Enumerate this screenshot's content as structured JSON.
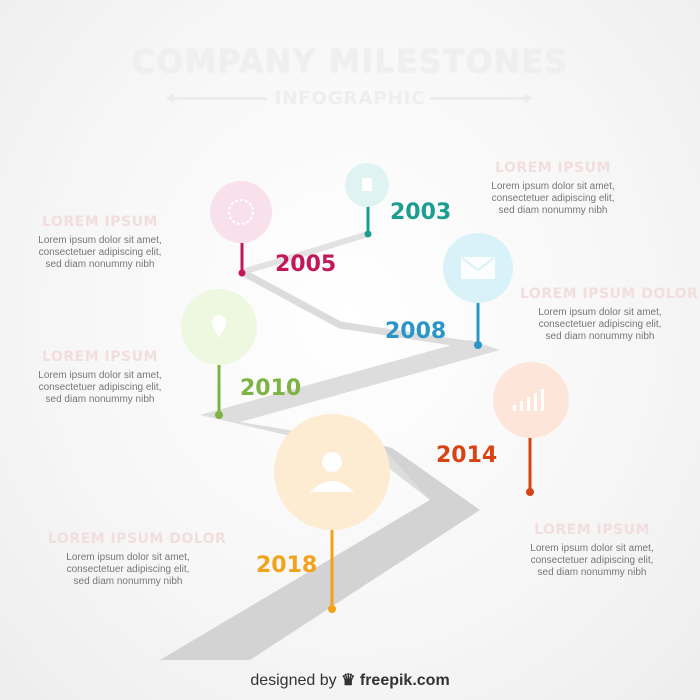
{
  "header": {
    "title": "COMPANY MILESTONES",
    "subtitle": "INFOGRAPHIC"
  },
  "milestones": [
    {
      "year": "2003",
      "color": "#1a9e8f",
      "icon": "document-icon"
    },
    {
      "year": "2005",
      "color": "#c2185b",
      "icon": "globe-icon"
    },
    {
      "year": "2008",
      "color": "#2a95c9",
      "icon": "envelope-icon"
    },
    {
      "year": "2010",
      "color": "#7cb342",
      "icon": "location-pin-icon"
    },
    {
      "year": "2014",
      "color": "#d84315",
      "icon": "bar-chart-icon"
    },
    {
      "year": "2018",
      "color": "#f2a21b",
      "icon": "person-icon"
    }
  ],
  "text_blocks": [
    {
      "heading": "LOREM IPSUM",
      "lines": [
        "Lorem ipsum dolor sit amet,",
        "consectetuer adipiscing elit,",
        "sed diam nonummy nibh"
      ]
    },
    {
      "heading": "LOREM IPSUM",
      "lines": [
        "Lorem ipsum dolor sit amet,",
        "consectetuer adipiscing elit,",
        "sed diam nonummy nibh"
      ]
    },
    {
      "heading": "LOREM IPSUM DOLOR",
      "lines": [
        "Lorem ipsum dolor sit amet,",
        "consectetuer adipiscing elit,",
        "sed diam nonummy nibh"
      ]
    },
    {
      "heading": "LOREM IPSUM",
      "lines": [
        "Lorem ipsum dolor sit amet,",
        "consectetuer adipiscing elit,",
        "sed diam nonummy nibh"
      ]
    },
    {
      "heading": "LOREM IPSUM",
      "lines": [
        "Lorem ipsum dolor sit amet,",
        "consectetuer adipiscing elit,",
        "sed diam nonummy nibh"
      ]
    },
    {
      "heading": "LOREM IPSUM DOLOR",
      "lines": [
        "Lorem ipsum dolor sit amet,",
        "consectetuer adipiscing elit,",
        "sed diam nonummy nibh"
      ]
    }
  ],
  "footer": {
    "prefix": "designed by",
    "brand": "freepik.com"
  },
  "road_color": "#d6d6d6"
}
